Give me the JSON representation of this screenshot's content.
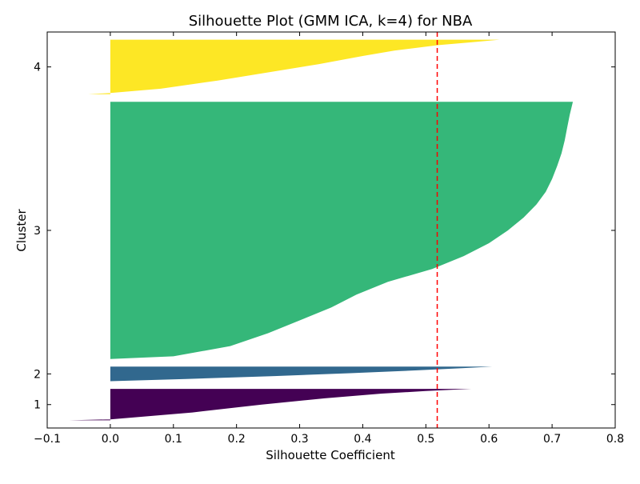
{
  "chart_data": {
    "type": "area",
    "title": "Silhouette Plot (GMM ICA, k=4) for NBA",
    "xlabel": "Silhouette Coefficient",
    "ylabel": "Cluster",
    "xlim": [
      -0.1,
      0.8
    ],
    "x_ticks": [
      "−0.1",
      "0.0",
      "0.1",
      "0.2",
      "0.3",
      "0.4",
      "0.5",
      "0.6",
      "0.7",
      "0.8"
    ],
    "x_tick_values": [
      -0.1,
      0.0,
      0.1,
      0.2,
      0.3,
      0.4,
      0.5,
      0.6,
      0.7,
      0.8
    ],
    "y_ticks": [
      "1",
      "2",
      "3",
      "4"
    ],
    "average_silhouette": 0.518,
    "average_line_color": "#ff0000",
    "grid": false,
    "series": [
      {
        "name": "1",
        "color": "#440154",
        "samples": 41,
        "profile": [
          [
            0,
            -0.065
          ],
          [
            0.03,
            0.0
          ],
          [
            0.25,
            0.13
          ],
          [
            0.5,
            0.24
          ],
          [
            0.7,
            0.34
          ],
          [
            0.85,
            0.43
          ],
          [
            0.93,
            0.5
          ],
          [
            0.97,
            0.54
          ],
          [
            1.0,
            0.572
          ]
        ]
      },
      {
        "name": "2",
        "color": "#31688e",
        "samples": 19,
        "profile": [
          [
            0,
            0.0
          ],
          [
            0.15,
            0.12
          ],
          [
            0.35,
            0.26
          ],
          [
            0.55,
            0.38
          ],
          [
            0.75,
            0.49
          ],
          [
            0.9,
            0.56
          ],
          [
            1.0,
            0.605
          ]
        ]
      },
      {
        "name": "3",
        "color": "#35b779",
        "samples": 335,
        "profile": [
          [
            0,
            0.0
          ],
          [
            0.01,
            0.1
          ],
          [
            0.05,
            0.19
          ],
          [
            0.1,
            0.25
          ],
          [
            0.15,
            0.3
          ],
          [
            0.2,
            0.35
          ],
          [
            0.25,
            0.39
          ],
          [
            0.3,
            0.44
          ],
          [
            0.35,
            0.51
          ],
          [
            0.4,
            0.56
          ],
          [
            0.45,
            0.6
          ],
          [
            0.5,
            0.63
          ],
          [
            0.55,
            0.655
          ],
          [
            0.6,
            0.675
          ],
          [
            0.65,
            0.69
          ],
          [
            0.7,
            0.7
          ],
          [
            0.75,
            0.708
          ],
          [
            0.8,
            0.715
          ],
          [
            0.85,
            0.72
          ],
          [
            0.9,
            0.724
          ],
          [
            0.95,
            0.728
          ],
          [
            1.0,
            0.733
          ]
        ]
      },
      {
        "name": "4",
        "color": "#fde725",
        "samples": 71,
        "profile": [
          [
            0,
            -0.035
          ],
          [
            0.02,
            0.0
          ],
          [
            0.1,
            0.08
          ],
          [
            0.25,
            0.17
          ],
          [
            0.4,
            0.25
          ],
          [
            0.55,
            0.33
          ],
          [
            0.7,
            0.4
          ],
          [
            0.8,
            0.45
          ],
          [
            0.9,
            0.52
          ],
          [
            0.95,
            0.57
          ],
          [
            1.0,
            0.617
          ]
        ]
      }
    ]
  }
}
